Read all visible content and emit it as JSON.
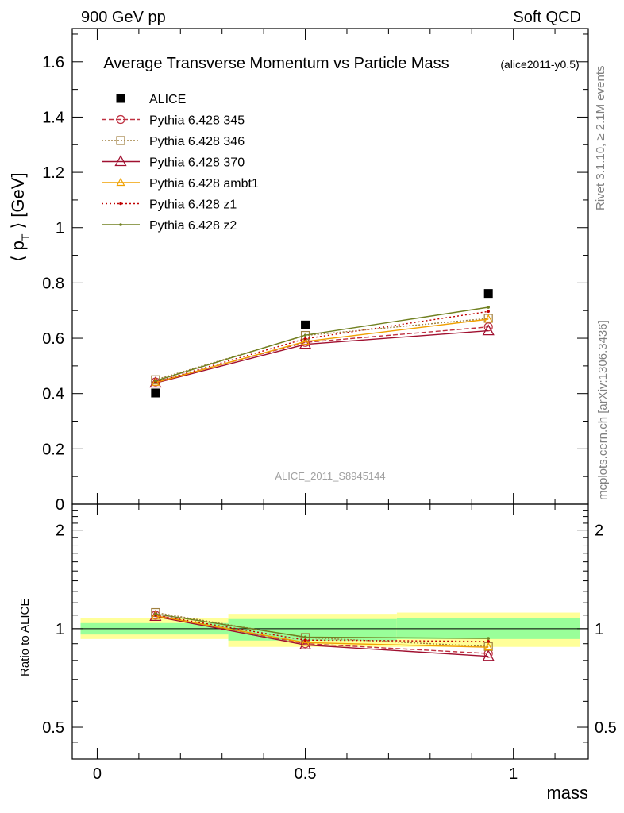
{
  "header": {
    "left": "900 GeV pp",
    "right": "Soft QCD",
    "title": "Average Transverse Momentum vs Particle Mass",
    "subtitle": "(alice2011-y0.5)"
  },
  "side": {
    "rivet": "Rivet 3.1.10, ≥ 2.1M events",
    "mcplots": "mcplots.cern.ch [arXiv:1306.3436]"
  },
  "watermark": "ALICE_2011_S8945144",
  "colors": {
    "data": "#000000",
    "p345": "#bf3040",
    "p346": "#a08040",
    "p370": "#a01030",
    "ambt1": "#f0a000",
    "z1": "#c00000",
    "z2": "#708020",
    "band_inner": "#99ff99",
    "band_outer": "#ffff99"
  },
  "chart_data": [
    {
      "type": "line",
      "panel": "main",
      "ylabel": "⟨ p_T ⟩ [GeV]",
      "xlim": [
        -0.06,
        1.18
      ],
      "ylim": [
        0,
        1.72
      ],
      "yticks": [
        0,
        0.2,
        0.4,
        0.6,
        0.8,
        1,
        1.2,
        1.4,
        1.6
      ],
      "ytick_labels": [
        "0",
        "0.2",
        "0.4",
        "0.6",
        "0.8",
        "1",
        "1.2",
        "1.4",
        "1.6"
      ],
      "x": [
        0.14,
        0.5,
        0.94
      ],
      "legend_position": "top-left",
      "series": [
        {
          "name": "ALICE",
          "key": "data",
          "marker": "square",
          "values": [
            0.402,
            0.648,
            0.762
          ]
        },
        {
          "name": "Pythia 6.428 345",
          "key": "p345",
          "marker": "circle",
          "dash": "6,3",
          "values": [
            0.442,
            0.585,
            0.641
          ]
        },
        {
          "name": "Pythia 6.428 346",
          "key": "p346",
          "marker": "square-open",
          "dash": "2,2",
          "values": [
            0.45,
            0.61,
            0.672
          ]
        },
        {
          "name": "Pythia 6.428 370",
          "key": "p370",
          "marker": "triangle",
          "dash": "",
          "values": [
            0.438,
            0.578,
            0.627
          ]
        },
        {
          "name": "Pythia 6.428 ambt1",
          "key": "ambt1",
          "marker": "triangle-small",
          "dash": "",
          "values": [
            0.44,
            0.588,
            0.669
          ]
        },
        {
          "name": "Pythia 6.428 z1",
          "key": "z1",
          "marker": "dot",
          "dash": "2,3",
          "values": [
            0.442,
            0.598,
            0.697
          ]
        },
        {
          "name": "Pythia 6.428 z2",
          "key": "z2",
          "marker": "dot",
          "dash": "",
          "values": [
            0.446,
            0.611,
            0.712
          ]
        }
      ]
    },
    {
      "type": "line",
      "panel": "ratio",
      "ylabel": "Ratio to ALICE",
      "xlabel": "mass",
      "scale": "log",
      "xlim": [
        -0.06,
        1.18
      ],
      "ylim": [
        0.4,
        2.4
      ],
      "yticks": [
        0.5,
        1,
        2
      ],
      "ytick_labels": [
        "0.5",
        "1",
        "2"
      ],
      "xticks": [
        0,
        0.5,
        1
      ],
      "xtick_labels": [
        "0",
        "0.5",
        "1"
      ],
      "x": [
        0.14,
        0.5,
        0.94
      ],
      "bands": [
        {
          "x": [
            -0.04,
            0.315
          ],
          "inner": [
            0.96,
            1.04
          ],
          "outer": [
            0.93,
            1.08
          ]
        },
        {
          "x": [
            0.315,
            0.72
          ],
          "inner": [
            0.92,
            1.07
          ],
          "outer": [
            0.88,
            1.11
          ]
        },
        {
          "x": [
            0.72,
            1.16
          ],
          "inner": [
            0.93,
            1.08
          ],
          "outer": [
            0.88,
            1.12
          ]
        }
      ],
      "series": [
        {
          "name": "Pythia 6.428 345",
          "key": "p345",
          "marker": "circle",
          "dash": "6,3",
          "values": [
            1.1,
            0.9,
            0.84
          ]
        },
        {
          "name": "Pythia 6.428 346",
          "key": "p346",
          "marker": "square-open",
          "dash": "2,2",
          "values": [
            1.12,
            0.94,
            0.882
          ]
        },
        {
          "name": "Pythia 6.428 370",
          "key": "p370",
          "marker": "triangle",
          "dash": "",
          "values": [
            1.09,
            0.892,
            0.823
          ]
        },
        {
          "name": "Pythia 6.428 ambt1",
          "key": "ambt1",
          "marker": "triangle-small",
          "dash": "",
          "values": [
            1.095,
            0.907,
            0.878
          ]
        },
        {
          "name": "Pythia 6.428 z1",
          "key": "z1",
          "marker": "dot",
          "dash": "2,3",
          "values": [
            1.1,
            0.923,
            0.915
          ]
        },
        {
          "name": "Pythia 6.428 z2",
          "key": "z2",
          "marker": "dot",
          "dash": "",
          "values": [
            1.109,
            0.943,
            0.934
          ]
        }
      ]
    }
  ]
}
